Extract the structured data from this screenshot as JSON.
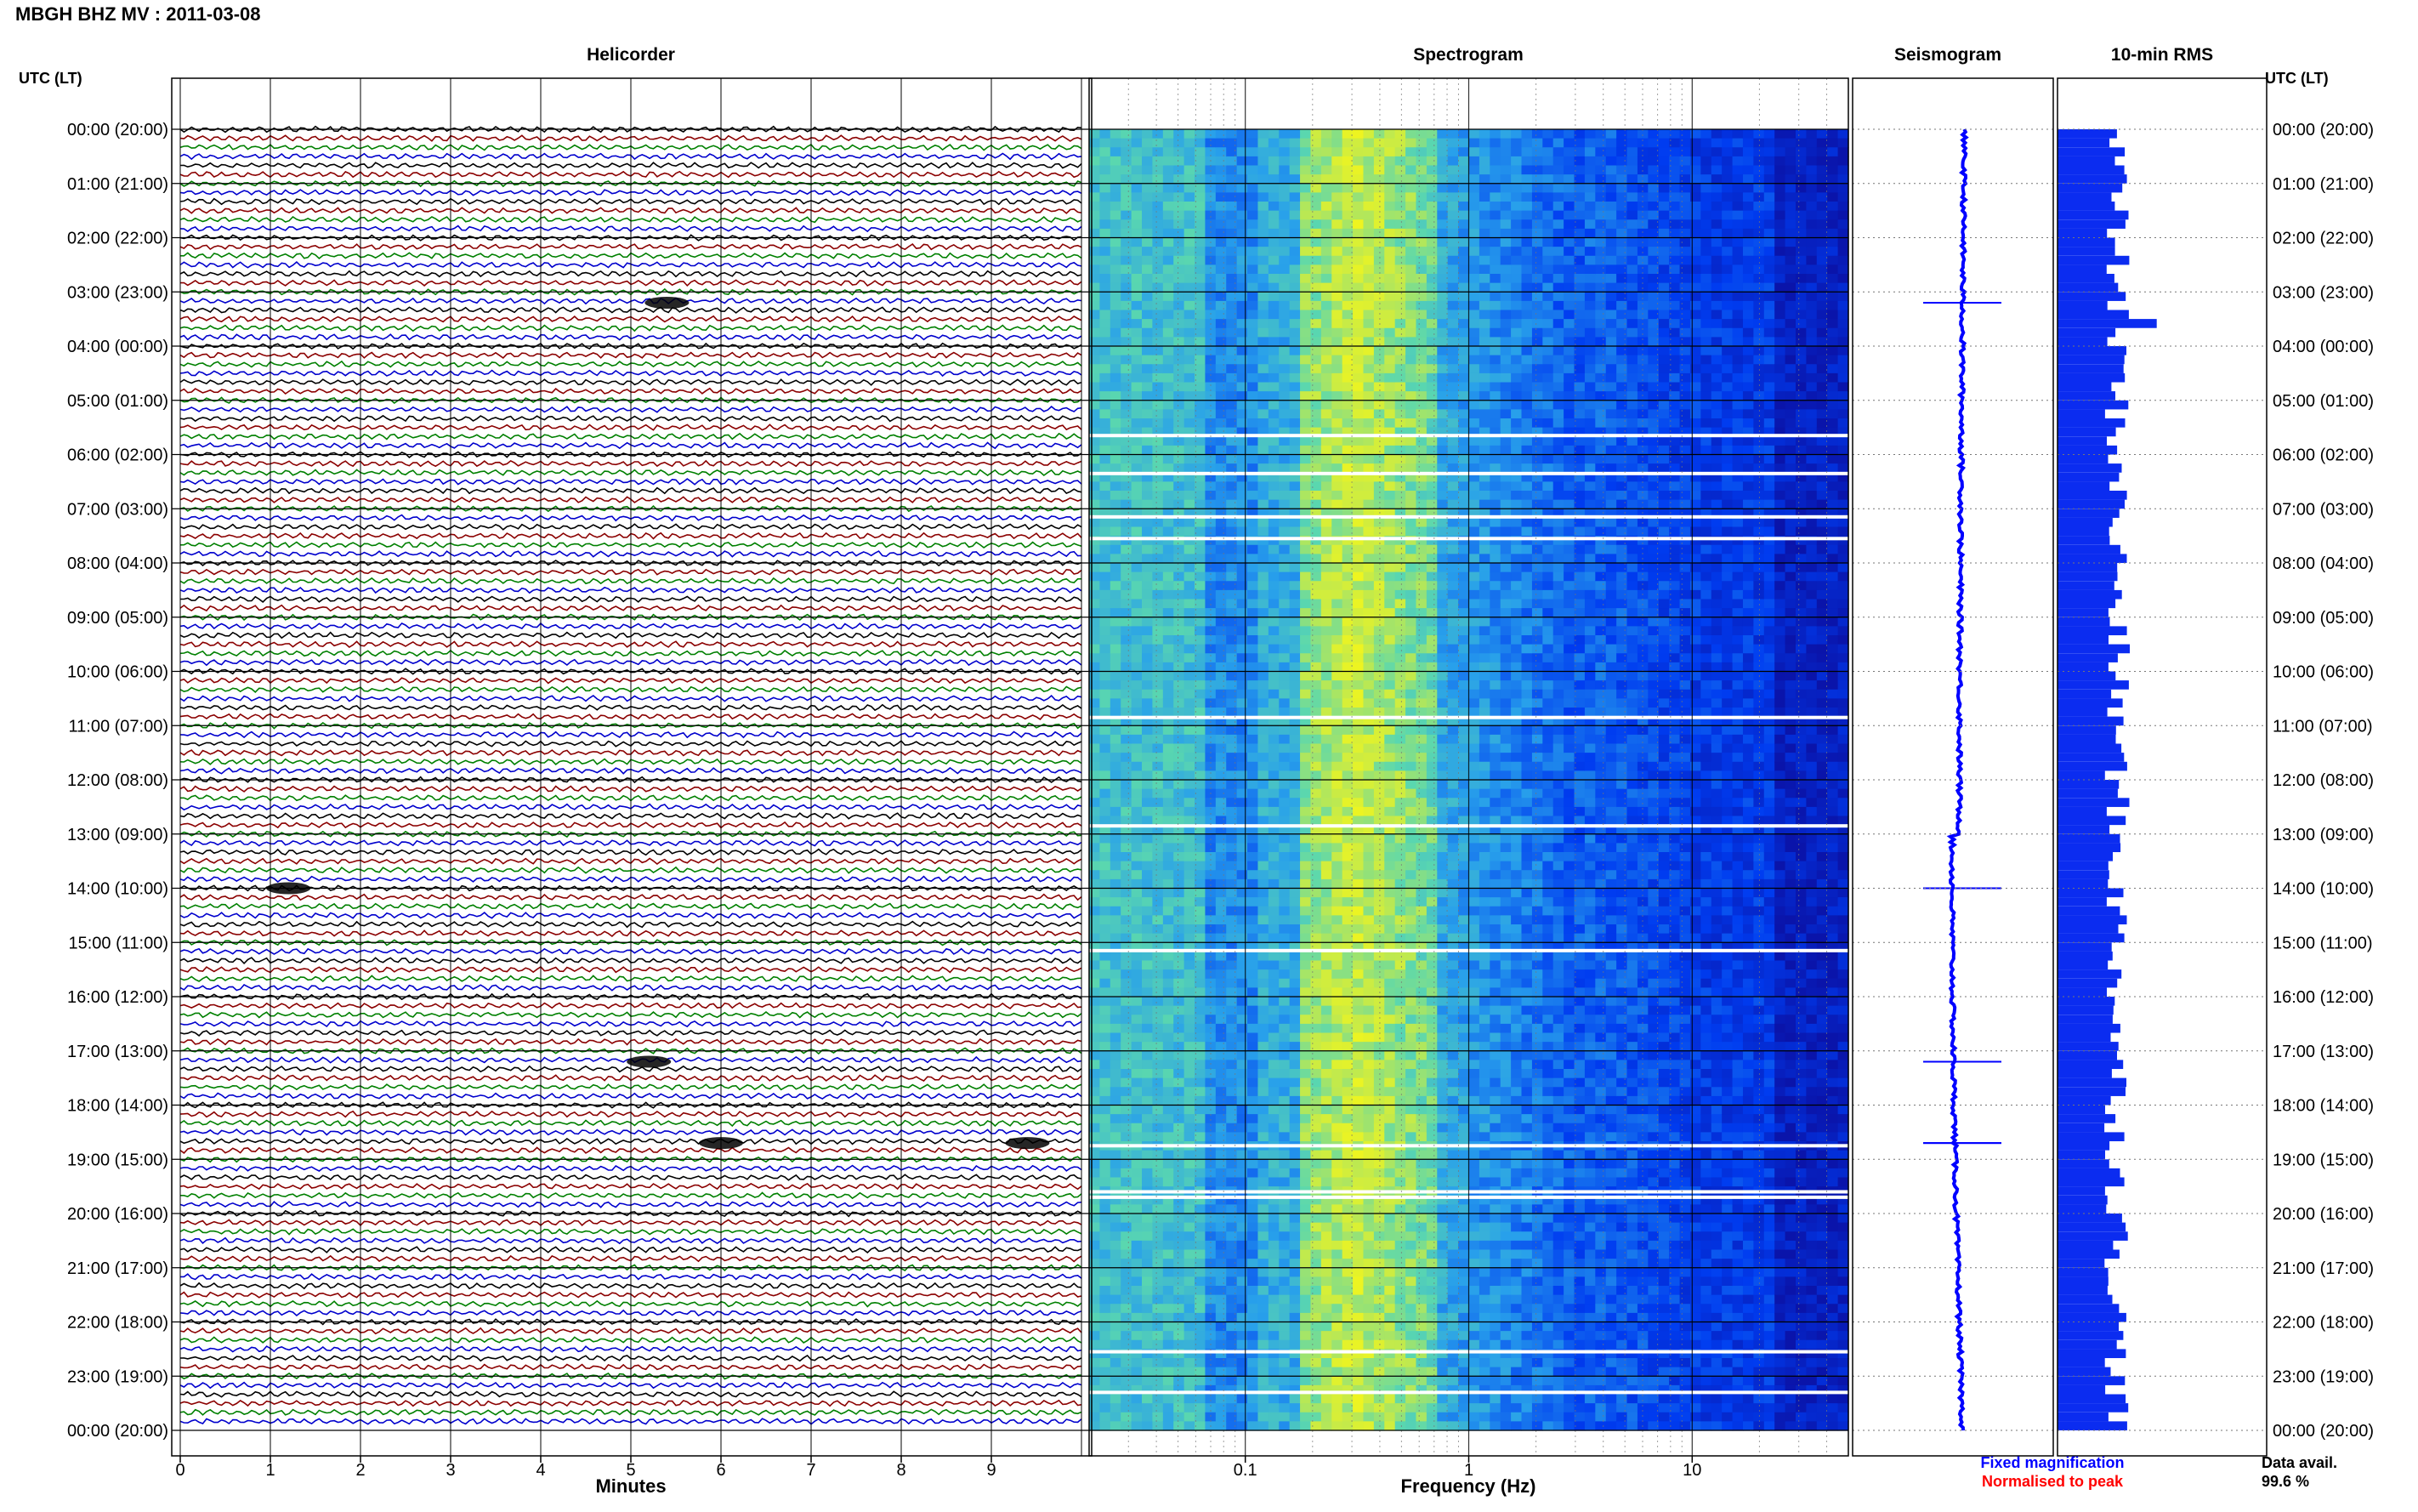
{
  "title": "MBGH BHZ MV : 2011-03-08",
  "panels": {
    "helicorder": "Helicorder",
    "spectrogram": "Spectrogram",
    "seismogram": "Seismogram",
    "rms": "10-min RMS"
  },
  "axis_labels": {
    "utc_left": "UTC (LT)",
    "utc_right": "UTC (LT)",
    "minutes": "Minutes",
    "frequency": "Frequency (Hz)"
  },
  "legend": {
    "fixed": "Fixed magnification",
    "normalised": "Normalised to peak"
  },
  "data_avail": {
    "label": "Data avail.",
    "value": "99.6 %"
  },
  "colors": {
    "fixed": "#0000ff",
    "normalised": "#ff0000",
    "rms_bar": "#0b2cf0",
    "trace_cycle": [
      "#000000",
      "#8b0000",
      "#008000",
      "#0000cd"
    ]
  },
  "chart_data": {
    "type": "heatmap",
    "time_labels": [
      "00:00 (20:00)",
      "01:00 (21:00)",
      "02:00 (22:00)",
      "03:00 (23:00)",
      "04:00 (00:00)",
      "05:00 (01:00)",
      "06:00 (02:00)",
      "07:00 (03:00)",
      "08:00 (04:00)",
      "09:00 (05:00)",
      "10:00 (06:00)",
      "11:00 (07:00)",
      "12:00 (08:00)",
      "13:00 (09:00)",
      "14:00 (10:00)",
      "15:00 (11:00)",
      "16:00 (12:00)",
      "17:00 (13:00)",
      "18:00 (14:00)",
      "19:00 (15:00)",
      "20:00 (16:00)",
      "21:00 (17:00)",
      "22:00 (18:00)",
      "23:00 (19:00)",
      "00:00 (20:00)"
    ],
    "minutes_ticks": [
      "0",
      "1",
      "2",
      "3",
      "4",
      "5",
      "6",
      "7",
      "8",
      "9"
    ],
    "frequency_ticks": [
      "0.1",
      "1",
      "10"
    ],
    "frequency_range_hz": [
      0.02,
      50
    ],
    "spectrogram_gaps_hours": [
      5.65,
      6.35,
      7.15,
      7.55,
      10.85,
      12.85,
      15.15,
      18.75,
      19.6,
      19.7,
      22.55,
      23.3
    ],
    "seismic_events": [
      {
        "hour": 3.2,
        "minute": 5.4
      },
      {
        "hour": 14.0,
        "minute": 1.2
      },
      {
        "hour": 17.2,
        "minute": 5.2
      },
      {
        "hour": 18.7,
        "minute": 6.0
      },
      {
        "hour": 18.7,
        "minute": 9.4
      }
    ]
  }
}
